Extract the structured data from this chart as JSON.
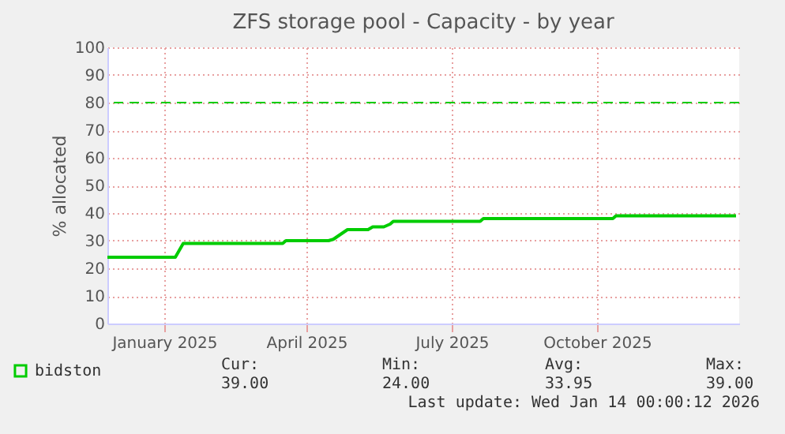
{
  "chart_data": {
    "type": "line",
    "title": "ZFS storage pool - Capacity - by year",
    "ylabel": "% allocated",
    "x": [
      "2024-12-10",
      "2025-01-22",
      "2025-01-27",
      "2025-03-31",
      "2025-04-02",
      "2025-04-29",
      "2025-05-02",
      "2025-05-11",
      "2025-05-24",
      "2025-05-27",
      "2025-06-03",
      "2025-06-07",
      "2025-06-09",
      "2025-08-03",
      "2025-08-05",
      "2025-10-26",
      "2025-10-28",
      "2026-01-12"
    ],
    "series": [
      {
        "name": "bidston",
        "color": "#00cc00",
        "values": [
          24,
          24,
          29,
          29,
          30,
          30,
          30.5,
          34,
          34,
          35,
          35,
          36,
          37,
          37,
          38,
          38,
          39,
          39
        ]
      }
    ],
    "xlim": [
      "2024-12-10",
      "2026-01-14"
    ],
    "xticks": [
      {
        "value": "2025-01-15",
        "label": "January 2025"
      },
      {
        "value": "2025-04-15",
        "label": "April 2025"
      },
      {
        "value": "2025-07-16",
        "label": "July 2025"
      },
      {
        "value": "2025-10-16",
        "label": "October 2025"
      }
    ],
    "ylim": [
      0,
      100
    ],
    "yticks": [
      0,
      10,
      20,
      30,
      40,
      50,
      60,
      70,
      80,
      90,
      100
    ],
    "ref_lines": [
      {
        "axis": "y",
        "value": 80,
        "color": "#00cc00",
        "line_style": "dashed"
      }
    ],
    "grid": true,
    "legend": "bottom left",
    "marker": "none",
    "line_style": "solid",
    "annotations": [
      "Cur:",
      "Min:",
      "Avg:",
      "Max:",
      "39.00",
      "24.00",
      "33.95",
      "39.00",
      "Last update: Wed Jan 14 00:00:12 2026"
    ]
  }
}
